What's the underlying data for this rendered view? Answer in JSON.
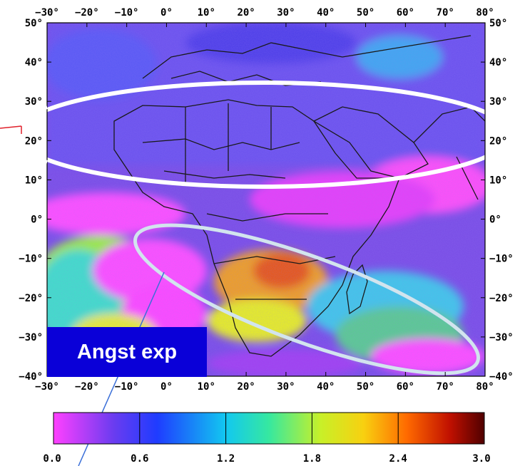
{
  "map": {
    "colors": {
      "ocean_base": "#7a4ee6",
      "land_dark": "#8a2ef0",
      "magenta": "#ff38ff",
      "blue": "#4a4af8",
      "cyan": "#28e0e0",
      "green": "#8cf04a",
      "yellow": "#e8f020",
      "orange": "#f08a20",
      "red": "#e84818",
      "border": "#1a1a1a",
      "ellipse_north": "#ffffff",
      "ellipse_south": "#cfe0ec",
      "pointer_red": "#e0202a",
      "pointer_blue": "#3a6fd8"
    },
    "lon_ticks_top": [
      "−30°",
      "−20°",
      "−10°",
      "0°",
      "10°",
      "20°",
      "30°",
      "40°",
      "50°",
      "60°",
      "70°",
      "80°"
    ],
    "lon_ticks_bottom": [
      "−30°",
      "−20°",
      "−10°",
      "0°",
      "10°",
      "20°",
      "30°",
      "40°",
      "50°",
      "60°",
      "70°",
      "80°"
    ],
    "lat_ticks_left": [
      "50°",
      "40°",
      "30°",
      "20°",
      "10°",
      "0°",
      "−10°",
      "−20°",
      "−30°",
      "−40°"
    ],
    "lat_ticks_right": [
      "50°",
      "40°",
      "30°",
      "20°",
      "10°",
      "0°",
      "−10°",
      "−20°",
      "−30°",
      "−40°"
    ],
    "lon_range": [
      -30,
      80
    ],
    "lat_range": [
      -40,
      50
    ]
  },
  "colorbar": {
    "ticks": [
      "0.0",
      "0.6",
      "1.2",
      "1.8",
      "2.4",
      "3.0"
    ],
    "range": [
      0.0,
      3.0
    ]
  },
  "annotation": {
    "label": "Angst exp",
    "label_bg": "#0a00d8",
    "label_color": "#ffffff"
  }
}
